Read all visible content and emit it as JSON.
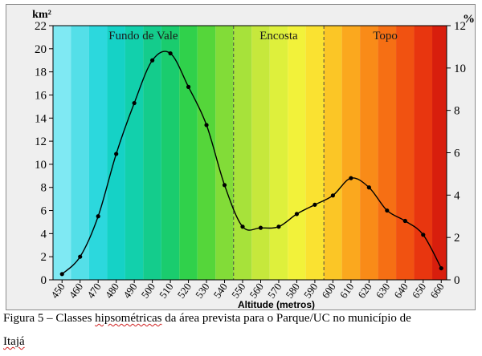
{
  "chart_data": {
    "type": "line",
    "x_unit_label": "Altitude (metros)",
    "y_left_label": "km²",
    "y_right_label": "%",
    "x": [
      450,
      460,
      470,
      480,
      490,
      500,
      510,
      520,
      530,
      540,
      550,
      560,
      570,
      580,
      590,
      600,
      610,
      620,
      630,
      640,
      650,
      660
    ],
    "x_ticks": [
      "450",
      "460",
      "470",
      "480",
      "490",
      "500",
      "510",
      "520",
      "530",
      "540",
      "550",
      "560",
      "570",
      "580",
      "590",
      "600",
      "610",
      "620",
      "630",
      "640",
      "650",
      "660"
    ],
    "y_left_ticks": [
      "0",
      "2",
      "4",
      "6",
      "8",
      "10",
      "12",
      "14",
      "16",
      "18",
      "20",
      "22"
    ],
    "y_right_ticks": [
      "0",
      "2",
      "4",
      "6",
      "8",
      "10",
      "12"
    ],
    "ylim_left": [
      0,
      22
    ],
    "ylim_right": [
      0,
      12
    ],
    "xlim": [
      445,
      663
    ],
    "series": [
      {
        "values": [
          0.5,
          2.0,
          5.5,
          10.9,
          15.3,
          19.0,
          19.6,
          16.7,
          13.4,
          8.2,
          4.6,
          4.5,
          4.6,
          5.7,
          6.5,
          7.3,
          8.8,
          8.0,
          6.0,
          5.1,
          3.9,
          1.0
        ]
      }
    ],
    "regions": [
      {
        "label": "Fundo de Vale",
        "from": 445,
        "to": 545
      },
      {
        "label": "Encosta",
        "from": 545,
        "to": 595
      },
      {
        "label": "Topo",
        "from": 595,
        "to": 663
      }
    ],
    "region_dividers": [
      545,
      595
    ],
    "background_bands": [
      {
        "from": 445,
        "to": 455,
        "color": "#7fe9f3"
      },
      {
        "from": 455,
        "to": 465,
        "color": "#54dfe8"
      },
      {
        "from": 465,
        "to": 475,
        "color": "#2cd8dd"
      },
      {
        "from": 475,
        "to": 485,
        "color": "#15d2c6"
      },
      {
        "from": 485,
        "to": 495,
        "color": "#12d0ac"
      },
      {
        "from": 495,
        "to": 505,
        "color": "#14cc8c"
      },
      {
        "from": 505,
        "to": 515,
        "color": "#1acc6e"
      },
      {
        "from": 515,
        "to": 525,
        "color": "#30d14b"
      },
      {
        "from": 525,
        "to": 535,
        "color": "#55d63a"
      },
      {
        "from": 535,
        "to": 545,
        "color": "#82dc38"
      },
      {
        "from": 545,
        "to": 555,
        "color": "#a7e23a"
      },
      {
        "from": 555,
        "to": 565,
        "color": "#c6e83c"
      },
      {
        "from": 565,
        "to": 575,
        "color": "#def03c"
      },
      {
        "from": 575,
        "to": 585,
        "color": "#f2f23a"
      },
      {
        "from": 585,
        "to": 595,
        "color": "#fae231"
      },
      {
        "from": 595,
        "to": 605,
        "color": "#fbc626"
      },
      {
        "from": 605,
        "to": 615,
        "color": "#fba81e"
      },
      {
        "from": 615,
        "to": 625,
        "color": "#f98b18"
      },
      {
        "from": 625,
        "to": 635,
        "color": "#f66f14"
      },
      {
        "from": 635,
        "to": 645,
        "color": "#f15211"
      },
      {
        "from": 645,
        "to": 655,
        "color": "#e8360f"
      },
      {
        "from": 655,
        "to": 663,
        "color": "#d81e0d"
      }
    ],
    "line_color": "#000000",
    "marker_color": "#000000",
    "grid": false
  },
  "caption": {
    "line1_before": "Figura 5 – Classes ",
    "line1_underlined": "hipsométricas",
    "line1_after": " da área prevista para o Parque/UC no município de",
    "line2_underlined": "Itajá"
  }
}
